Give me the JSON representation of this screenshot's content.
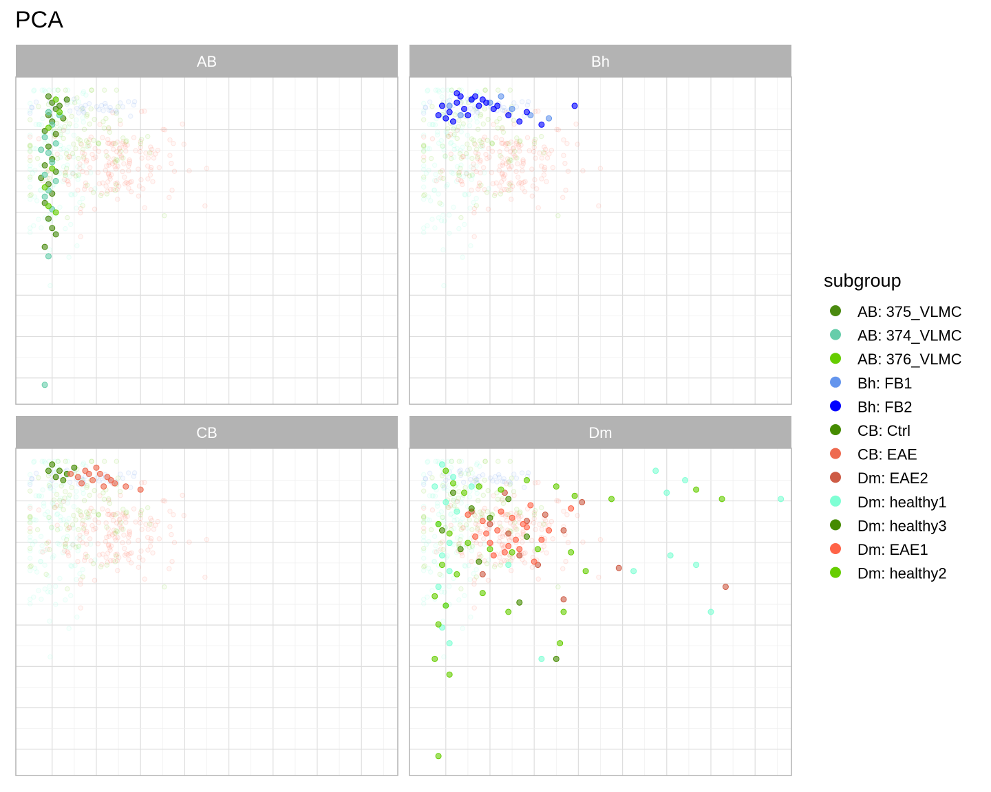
{
  "chart_data": {
    "type": "scatter",
    "title": "PCA",
    "xlabel": "",
    "ylabel": "",
    "xlim": [
      0,
      10
    ],
    "ylim": [
      0,
      10
    ],
    "grid": true,
    "legend_placement": "right",
    "legend_title": "subgroup",
    "subgroups": [
      {
        "name": "AB: 375_VLMC",
        "color": "#4A8A0F",
        "facet": "AB"
      },
      {
        "name": "AB: 374_VLMC",
        "color": "#66CDAA",
        "facet": "AB"
      },
      {
        "name": "AB: 376_VLMC",
        "color": "#66CD00",
        "facet": "AB"
      },
      {
        "name": "Bh: FB1",
        "color": "#6495ED",
        "facet": "Bh"
      },
      {
        "name": "Bh: FB2",
        "color": "#0000FF",
        "facet": "Bh"
      },
      {
        "name": "CB: Ctrl",
        "color": "#458B00",
        "facet": "CB"
      },
      {
        "name": "CB: EAE",
        "color": "#EE6A50",
        "facet": "CB"
      },
      {
        "name": "Dm: EAE2",
        "color": "#CD5B45",
        "facet": "Dm"
      },
      {
        "name": "Dm: healthy1",
        "color": "#7FFFD4",
        "facet": "Dm"
      },
      {
        "name": "Dm: healthy3",
        "color": "#458B00",
        "facet": "Dm"
      },
      {
        "name": "Dm: EAE1",
        "color": "#FF6347",
        "facet": "Dm"
      },
      {
        "name": "Dm: healthy2",
        "color": "#66CD00",
        "facet": "Dm"
      }
    ],
    "facets": [
      {
        "label": "AB",
        "series": [
          {
            "name": "AB: 375_VLMC",
            "points": [
              [
                0.8,
                9.4
              ],
              [
                0.9,
                9.2
              ],
              [
                1.0,
                9.3
              ],
              [
                0.7,
                9.0
              ],
              [
                0.8,
                8.8
              ],
              [
                1.1,
                8.9
              ],
              [
                0.6,
                8.5
              ],
              [
                0.9,
                8.4
              ],
              [
                0.7,
                8.0
              ],
              [
                0.8,
                7.6
              ],
              [
                0.6,
                7.4
              ],
              [
                0.9,
                7.2
              ],
              [
                0.7,
                6.8
              ],
              [
                0.8,
                6.5
              ],
              [
                0.6,
                6.2
              ],
              [
                0.7,
                5.7
              ],
              [
                0.8,
                5.4
              ],
              [
                0.9,
                5.2
              ],
              [
                0.6,
                4.8
              ],
              [
                0.7,
                9.6
              ],
              [
                1.2,
                9.5
              ],
              [
                0.5,
                7.0
              ]
            ]
          },
          {
            "name": "AB: 374_VLMC",
            "points": [
              [
                0.7,
                9.1
              ],
              [
                0.8,
                8.7
              ],
              [
                0.6,
                8.3
              ],
              [
                0.9,
                8.1
              ],
              [
                0.7,
                7.8
              ],
              [
                0.8,
                7.5
              ],
              [
                0.6,
                7.1
              ],
              [
                0.9,
                6.9
              ],
              [
                0.7,
                6.6
              ],
              [
                0.6,
                6.4
              ],
              [
                0.8,
                6.0
              ],
              [
                0.7,
                4.5
              ],
              [
                0.6,
                0.4
              ],
              [
                1.0,
                9.0
              ],
              [
                0.5,
                7.9
              ]
            ]
          },
          {
            "name": "AB: 376_VLMC",
            "points": [
              [
                0.9,
                9.5
              ],
              [
                1.0,
                9.1
              ],
              [
                0.7,
                8.6
              ],
              [
                0.8,
                7.3
              ],
              [
                0.6,
                6.7
              ],
              [
                0.7,
                6.1
              ],
              [
                0.9,
                5.9
              ]
            ]
          }
        ]
      },
      {
        "label": "Bh",
        "series": [
          {
            "name": "Bh: FB1",
            "points": [
              [
                1.5,
                9.5
              ],
              [
                2.0,
                9.4
              ],
              [
                2.6,
                9.2
              ],
              [
                3.1,
                9.0
              ],
              [
                3.6,
                8.9
              ],
              [
                1.2,
                9.0
              ],
              [
                0.9,
                9.3
              ],
              [
                2.3,
                9.6
              ]
            ]
          },
          {
            "name": "Bh: FB2",
            "points": [
              [
                0.7,
                9.3
              ],
              [
                0.9,
                9.1
              ],
              [
                1.1,
                9.4
              ],
              [
                1.3,
                9.2
              ],
              [
                1.5,
                9.5
              ],
              [
                1.7,
                9.3
              ],
              [
                1.9,
                9.4
              ],
              [
                2.1,
                9.2
              ],
              [
                0.8,
                8.9
              ],
              [
                1.0,
                8.8
              ],
              [
                1.2,
                9.6
              ],
              [
                1.4,
                9.0
              ],
              [
                1.6,
                9.6
              ],
              [
                1.8,
                9.5
              ],
              [
                2.2,
                9.3
              ],
              [
                2.5,
                9.0
              ],
              [
                3.0,
                9.1
              ],
              [
                2.8,
                8.8
              ],
              [
                4.3,
                9.3
              ],
              [
                3.4,
                8.7
              ],
              [
                0.6,
                9.0
              ],
              [
                1.1,
                9.7
              ]
            ]
          }
        ]
      },
      {
        "label": "CB",
        "series": [
          {
            "name": "CB: Ctrl",
            "points": [
              [
                0.8,
                9.7
              ],
              [
                1.0,
                9.5
              ],
              [
                1.2,
                9.4
              ],
              [
                0.9,
                9.3
              ],
              [
                1.4,
                9.6
              ],
              [
                1.1,
                9.2
              ],
              [
                0.7,
                9.5
              ]
            ]
          },
          {
            "name": "CB: EAE",
            "points": [
              [
                1.3,
                9.4
              ],
              [
                1.5,
                9.3
              ],
              [
                1.7,
                9.5
              ],
              [
                1.9,
                9.2
              ],
              [
                2.1,
                9.4
              ],
              [
                2.3,
                9.3
              ],
              [
                2.5,
                9.1
              ],
              [
                2.8,
                9.0
              ],
              [
                3.2,
                8.9
              ],
              [
                1.6,
                9.1
              ],
              [
                2.0,
                9.6
              ],
              [
                2.4,
                9.2
              ],
              [
                1.8,
                9.4
              ],
              [
                2.2,
                9.0
              ]
            ]
          }
        ]
      },
      {
        "label": "Dm",
        "series": [
          {
            "name": "Dm: EAE2",
            "points": [
              [
                1.5,
                8.2
              ],
              [
                2.0,
                7.8
              ],
              [
                2.5,
                7.5
              ],
              [
                3.0,
                7.9
              ],
              [
                3.5,
                8.1
              ],
              [
                4.0,
                7.6
              ],
              [
                4.5,
                8.5
              ],
              [
                2.8,
                6.8
              ],
              [
                3.3,
                6.5
              ],
              [
                1.8,
                6.2
              ],
              [
                5.5,
                6.4
              ],
              [
                8.4,
                5.8
              ],
              [
                4.0,
                5.4
              ],
              [
                2.4,
                8.8
              ]
            ]
          },
          {
            "name": "Dm: healthy1",
            "points": [
              [
                0.7,
                9.7
              ],
              [
                1.0,
                9.3
              ],
              [
                0.5,
                9.0
              ],
              [
                0.8,
                8.5
              ],
              [
                1.1,
                8.2
              ],
              [
                0.6,
                7.8
              ],
              [
                0.9,
                7.2
              ],
              [
                0.7,
                6.8
              ],
              [
                0.9,
                6.3
              ],
              [
                0.6,
                5.8
              ],
              [
                0.8,
                5.2
              ],
              [
                0.7,
                4.5
              ],
              [
                0.9,
                4.0
              ],
              [
                6.5,
                9.5
              ],
              [
                7.3,
                9.2
              ],
              [
                6.8,
                8.8
              ],
              [
                9.9,
                8.6
              ],
              [
                6.9,
                6.8
              ],
              [
                7.6,
                6.5
              ],
              [
                5.9,
                6.3
              ],
              [
                8.0,
                5.0
              ],
              [
                3.4,
                3.5
              ],
              [
                1.5,
                9.0
              ],
              [
                2.5,
                6.5
              ]
            ]
          },
          {
            "name": "Dm: healthy3",
            "points": [
              [
                1.0,
                8.8
              ],
              [
                1.5,
                8.3
              ],
              [
                2.0,
                8.0
              ],
              [
                2.5,
                8.6
              ],
              [
                3.0,
                7.4
              ],
              [
                0.7,
                7.6
              ],
              [
                1.2,
                7.0
              ],
              [
                2.8,
                5.3
              ],
              [
                3.8,
                3.5
              ],
              [
                1.7,
                6.6
              ]
            ]
          },
          {
            "name": "Dm: EAE1",
            "points": [
              [
                1.4,
                8.1
              ],
              [
                1.8,
                7.9
              ],
              [
                2.2,
                7.6
              ],
              [
                2.6,
                8.0
              ],
              [
                3.0,
                7.7
              ],
              [
                3.4,
                7.3
              ],
              [
                1.6,
                7.4
              ],
              [
                2.0,
                7.2
              ],
              [
                2.4,
                6.9
              ],
              [
                2.8,
                7.0
              ],
              [
                3.2,
                6.6
              ],
              [
                3.6,
                7.6
              ],
              [
                4.2,
                8.3
              ],
              [
                1.9,
                7.5
              ],
              [
                2.3,
                8.2
              ],
              [
                2.7,
                7.3
              ],
              [
                2.1,
                6.8
              ],
              [
                2.9,
                7.8
              ],
              [
                2.5,
                7.1
              ],
              [
                3.1,
                8.4
              ]
            ]
          },
          {
            "name": "Dm: healthy2",
            "points": [
              [
                0.8,
                9.5
              ],
              [
                1.0,
                9.1
              ],
              [
                1.3,
                8.8
              ],
              [
                1.7,
                9.0
              ],
              [
                2.3,
                8.9
              ],
              [
                3.0,
                9.2
              ],
              [
                3.8,
                9.0
              ],
              [
                4.3,
                8.7
              ],
              [
                0.6,
                7.8
              ],
              [
                0.9,
                7.5
              ],
              [
                1.4,
                7.2
              ],
              [
                2.0,
                7.0
              ],
              [
                2.6,
                6.9
              ],
              [
                3.3,
                7.0
              ],
              [
                4.2,
                6.9
              ],
              [
                0.7,
                6.5
              ],
              [
                1.1,
                6.2
              ],
              [
                0.5,
                5.5
              ],
              [
                0.8,
                5.2
              ],
              [
                0.6,
                4.6
              ],
              [
                1.8,
                5.6
              ],
              [
                2.5,
                5.0
              ],
              [
                4.0,
                5.0
              ],
              [
                3.9,
                4.0
              ],
              [
                0.5,
                3.5
              ],
              [
                0.9,
                3.0
              ],
              [
                0.6,
                0.4
              ],
              [
                5.3,
                8.6
              ],
              [
                7.6,
                8.9
              ],
              [
                8.3,
                8.6
              ],
              [
                4.6,
                6.3
              ]
            ]
          }
        ]
      }
    ]
  },
  "background_clouds": [
    {
      "color": "#7FFFD4",
      "cx": 0.9,
      "cy": 7.5,
      "sx": 0.5,
      "sy": 1.5,
      "n": 120
    },
    {
      "color": "#FF6347",
      "cx": 2.5,
      "cy": 7.5,
      "sx": 0.9,
      "sy": 0.7,
      "n": 160
    },
    {
      "color": "#66CD00",
      "cx": 1.6,
      "cy": 8.1,
      "sx": 1.0,
      "sy": 0.9,
      "n": 100
    },
    {
      "color": "#6495ED",
      "cx": 1.6,
      "cy": 9.2,
      "sx": 0.9,
      "sy": 0.15,
      "n": 40
    }
  ]
}
